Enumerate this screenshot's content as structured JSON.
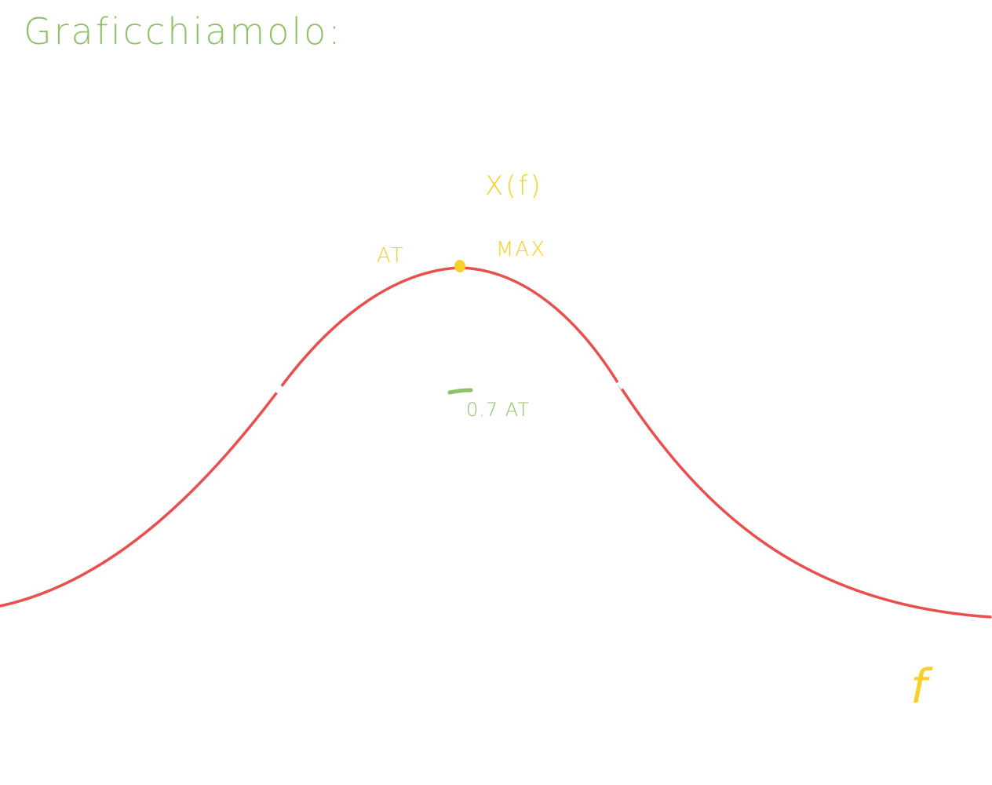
{
  "title": "Graficchiamolo:",
  "labels": {
    "function": "X(f)",
    "peak_left": "AT",
    "peak_right": "MAX",
    "threshold": "0.7 AT",
    "axis": "f"
  },
  "colors": {
    "green": "#8fc06a",
    "yellow": "#f7d12a",
    "curve": "#e8504d"
  }
}
